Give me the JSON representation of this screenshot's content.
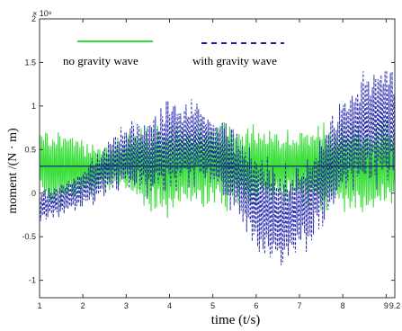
{
  "chart_data": {
    "type": "line",
    "title": "",
    "xlabel": "time (t/s)",
    "ylabel": "moment  /(N · m)",
    "y_exponent_label": "× 10⁸",
    "xlim": [
      1,
      9.2
    ],
    "ylim": [
      -1.2,
      2.0
    ],
    "x_ticks": [
      1,
      2,
      3,
      4,
      5,
      6,
      7,
      8,
      9,
      9.2
    ],
    "x_tick_labels": [
      "1",
      "2",
      "3",
      "4",
      "5",
      "6",
      "7",
      "8",
      "9",
      "9.2"
    ],
    "y_ticks": [
      -1,
      -0.5,
      0,
      0.5,
      1,
      1.5,
      2
    ],
    "y_tick_labels": [
      "-1",
      "-0.5",
      "0",
      "0.5",
      "1",
      "1.5",
      "2"
    ],
    "grid": false,
    "reference_line_y": 0.31,
    "legend": {
      "placement": "top"
    },
    "series": [
      {
        "name": "no gravity wave",
        "color": "#33dd33",
        "style": "solid",
        "x": [
          1.0,
          1.5,
          2.0,
          2.5,
          3.0,
          3.5,
          4.0,
          4.5,
          5.0,
          5.5,
          6.0,
          6.5,
          7.0,
          7.5,
          8.0,
          8.5,
          9.0,
          9.2
        ],
        "center": [
          0.32,
          0.3,
          0.28,
          0.3,
          0.33,
          0.3,
          0.28,
          0.32,
          0.34,
          0.3,
          0.32,
          0.31,
          0.33,
          0.3,
          0.31,
          0.3,
          0.32,
          0.3
        ],
        "amplitude": [
          0.45,
          0.55,
          0.35,
          0.3,
          0.35,
          0.55,
          0.6,
          0.5,
          0.55,
          0.55,
          0.5,
          0.45,
          0.45,
          0.55,
          0.55,
          0.55,
          0.6,
          0.55
        ]
      },
      {
        "name": "with gravity wave",
        "color": "#1a1aaa",
        "style": "dashed",
        "x": [
          1.0,
          1.5,
          2.0,
          2.5,
          3.0,
          3.5,
          4.0,
          4.5,
          5.0,
          5.5,
          6.0,
          6.5,
          7.0,
          7.5,
          8.0,
          8.5,
          9.0,
          9.2
        ],
        "center": [
          -0.15,
          -0.08,
          0.05,
          0.25,
          0.45,
          0.4,
          0.55,
          0.6,
          0.5,
          0.25,
          -0.1,
          -0.3,
          -0.2,
          0.15,
          0.55,
          0.75,
          0.85,
          0.8
        ],
        "amplitude": [
          0.2,
          0.2,
          0.25,
          0.35,
          0.4,
          0.5,
          0.6,
          0.55,
          0.5,
          0.55,
          0.6,
          0.65,
          0.6,
          0.6,
          0.65,
          0.75,
          0.8,
          0.75
        ]
      }
    ]
  }
}
